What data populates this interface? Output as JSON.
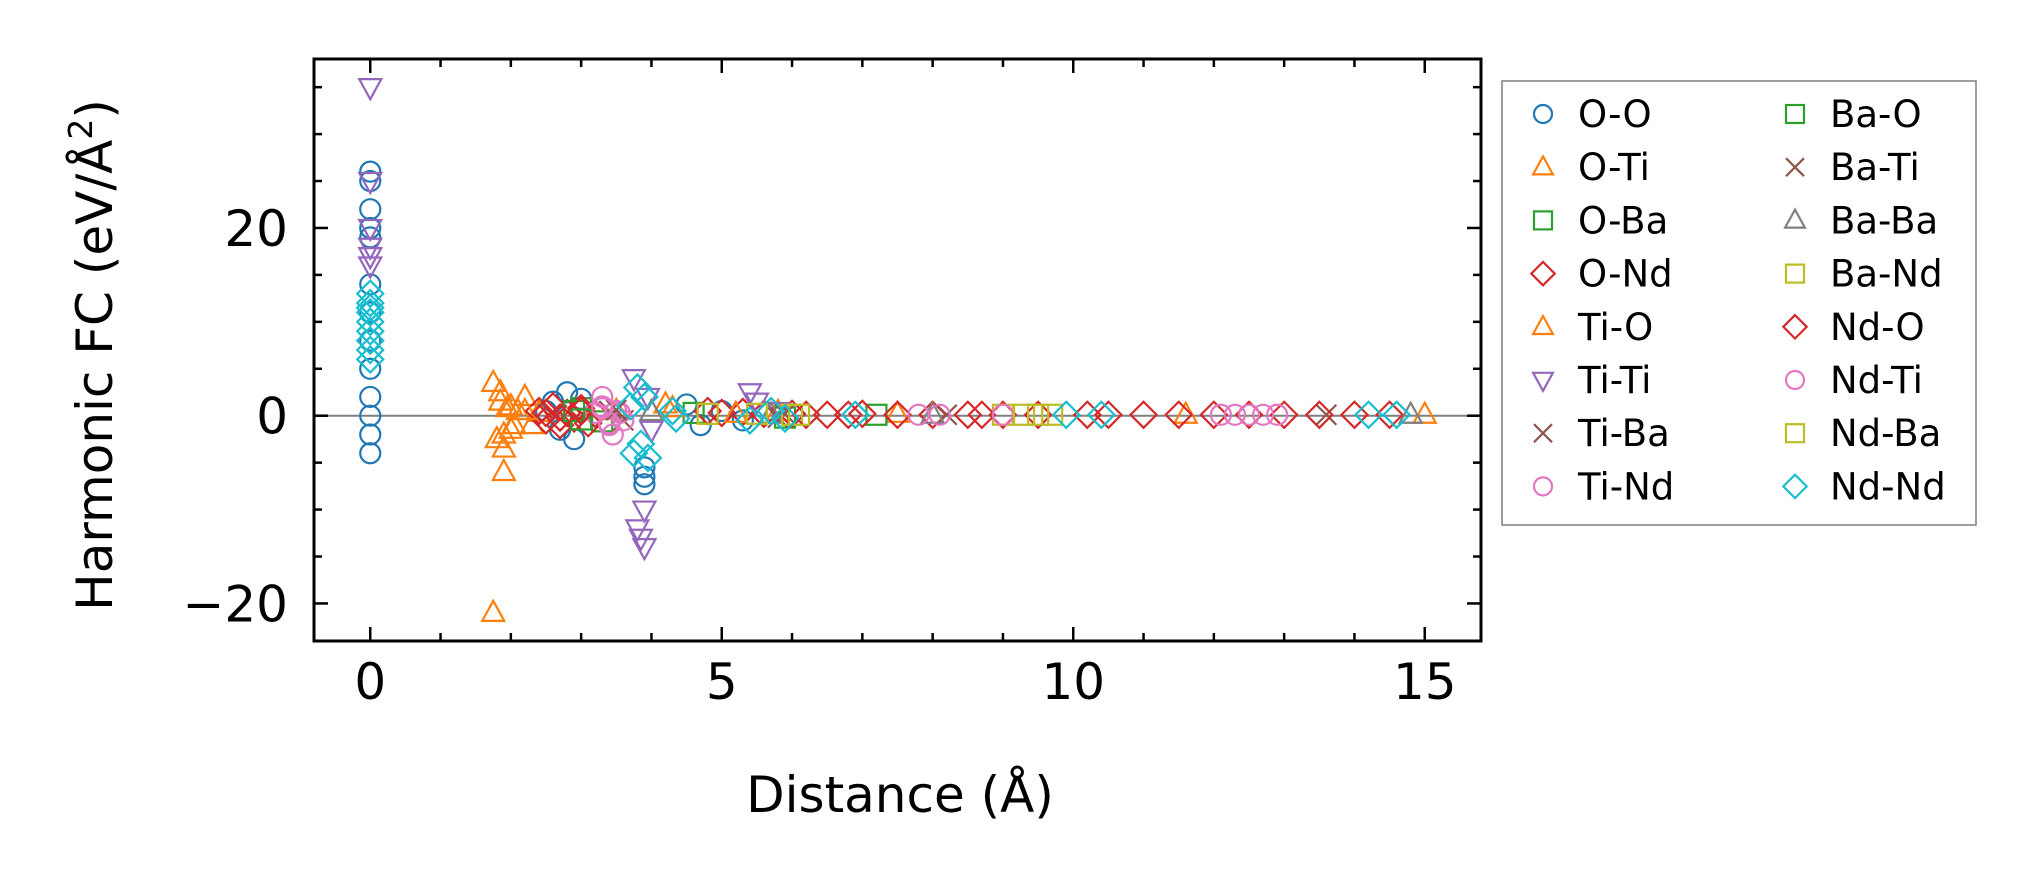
{
  "chart_data": {
    "type": "scatter",
    "xlabel": "Distance (Å)",
    "ylabel_main": "Harmonic FC (eV/Å",
    "ylabel_sup": "2",
    "ylabel_close": ")",
    "xlim": [
      -0.8,
      15.8
    ],
    "ylim": [
      -24,
      38
    ],
    "xticks": [
      0,
      5,
      10,
      15
    ],
    "xtick_labels": [
      "0",
      "5",
      "10",
      "15"
    ],
    "yticks": [
      -20,
      0,
      20
    ],
    "ytick_labels": [
      "−20",
      "0",
      "20"
    ],
    "x_minor_step": 1,
    "y_minor_step": 5,
    "zero_line": true,
    "grid": false,
    "legend_position": "outside-right",
    "legend_columns": 2,
    "series": [
      {
        "name": "O-O",
        "marker": "circle",
        "color": "#1f77b4",
        "points": [
          [
            0,
            26
          ],
          [
            0,
            25
          ],
          [
            0,
            22
          ],
          [
            0,
            20
          ],
          [
            0,
            19
          ],
          [
            0,
            14
          ],
          [
            0,
            11
          ],
          [
            0,
            8
          ],
          [
            0,
            5
          ],
          [
            0,
            2
          ],
          [
            0,
            0
          ],
          [
            0,
            -2
          ],
          [
            0,
            -4
          ],
          [
            2.6,
            1.5
          ],
          [
            2.7,
            -1.5
          ],
          [
            2.8,
            2.5
          ],
          [
            2.9,
            -2.5
          ],
          [
            3.0,
            1.8
          ],
          [
            2.5,
            0.5
          ],
          [
            3.9,
            -5.5
          ],
          [
            3.9,
            -6.5
          ],
          [
            3.9,
            -7.3
          ],
          [
            4.5,
            1.2
          ],
          [
            4.7,
            -1
          ],
          [
            5.0,
            0.5
          ],
          [
            5.3,
            -0.5
          ]
        ]
      },
      {
        "name": "O-Ti",
        "marker": "triangle-up",
        "color": "#ff7f0e",
        "points": [
          [
            1.75,
            3.5
          ],
          [
            1.8,
            -2.5
          ],
          [
            1.85,
            1.5
          ],
          [
            1.9,
            -3.5
          ],
          [
            1.95,
            0.8
          ],
          [
            2.0,
            -1.5
          ],
          [
            1.75,
            -21
          ],
          [
            1.9,
            -6
          ],
          [
            2.1,
            0.5
          ],
          [
            2.2,
            2
          ],
          [
            2.3,
            -1
          ],
          [
            2.4,
            0.3
          ],
          [
            3.5,
            0.5
          ],
          [
            4.2,
            1.2
          ],
          [
            5.8,
            0.4
          ],
          [
            7.5,
            0.2
          ],
          [
            11.6,
            0.1
          ],
          [
            15.0,
            0.1
          ]
        ]
      },
      {
        "name": "O-Ba",
        "marker": "square",
        "color": "#2ca02c",
        "points": [
          [
            3.0,
            0.8
          ],
          [
            3.3,
            -0.6
          ],
          [
            4.6,
            0.3
          ],
          [
            5.9,
            -0.2
          ],
          [
            7.2,
            0.1
          ]
        ]
      },
      {
        "name": "O-Nd",
        "marker": "diamond",
        "color": "#d62728",
        "points": [
          [
            2.4,
            0.5
          ],
          [
            2.5,
            -0.5
          ],
          [
            2.6,
            1
          ],
          [
            2.7,
            -1
          ],
          [
            2.8,
            0.3
          ],
          [
            2.9,
            -0.3
          ],
          [
            3.0,
            0.8
          ],
          [
            3.1,
            -0.8
          ],
          [
            3.2,
            0.2
          ],
          [
            4.8,
            0.5
          ],
          [
            5.0,
            0.3
          ],
          [
            5.3,
            0.4
          ],
          [
            5.6,
            0.2
          ],
          [
            6.0,
            0.2
          ],
          [
            6.5,
            0.1
          ],
          [
            7.0,
            0.2
          ],
          [
            7.5,
            0.1
          ],
          [
            8.0,
            0.1
          ],
          [
            8.5,
            0.1
          ],
          [
            9.0,
            0.1
          ],
          [
            9.5,
            0.1
          ],
          [
            10.5,
            0.1
          ],
          [
            11.0,
            0.1
          ],
          [
            11.5,
            0.1
          ],
          [
            12.5,
            0.1
          ],
          [
            13.0,
            0.1
          ],
          [
            14.0,
            0.1
          ],
          [
            14.5,
            0.1
          ]
        ]
      },
      {
        "name": "Ti-O",
        "marker": "triangle-up",
        "color": "#ff7f0e",
        "points": [
          [
            1.85,
            2.5
          ],
          [
            1.9,
            -2
          ],
          [
            2.0,
            1
          ],
          [
            2.05,
            -1
          ],
          [
            2.2,
            0.5
          ],
          [
            4.3,
            0.8
          ],
          [
            5.2,
            0.2
          ]
        ]
      },
      {
        "name": "Ti-Ti",
        "marker": "triangle-down",
        "color": "#9467bd",
        "points": [
          [
            0,
            35
          ],
          [
            0,
            25
          ],
          [
            0,
            20
          ],
          [
            0,
            18
          ],
          [
            0,
            17
          ],
          [
            0,
            16
          ],
          [
            3.8,
            -12
          ],
          [
            3.85,
            -13
          ],
          [
            3.9,
            -14
          ],
          [
            3.9,
            -10
          ],
          [
            3.75,
            4
          ],
          [
            3.95,
            2
          ],
          [
            4.0,
            -1.5
          ],
          [
            5.4,
            2.5
          ],
          [
            5.5,
            1.5
          ],
          [
            5.8,
            0.5
          ]
        ]
      },
      {
        "name": "Ti-Ba",
        "marker": "x",
        "color": "#8c564b",
        "points": [
          [
            3.4,
            0.5
          ],
          [
            3.6,
            -0.5
          ],
          [
            5.9,
            0.2
          ],
          [
            8.2,
            0.1
          ],
          [
            13.6,
            0.1
          ]
        ]
      },
      {
        "name": "Ti-Nd",
        "marker": "circle",
        "color": "#e377c2",
        "points": [
          [
            3.3,
            1
          ],
          [
            3.4,
            -1
          ],
          [
            3.5,
            0.5
          ],
          [
            3.6,
            -0.5
          ],
          [
            3.3,
            2
          ],
          [
            3.45,
            -2
          ],
          [
            3.55,
            0.3
          ],
          [
            3.2,
            0.3
          ]
        ]
      },
      {
        "name": "Ba-O",
        "marker": "square",
        "color": "#2ca02c",
        "points": [
          [
            2.9,
            0.5
          ],
          [
            3.0,
            -0.4
          ]
        ]
      },
      {
        "name": "Ba-Ti",
        "marker": "x",
        "color": "#8c564b",
        "points": [
          [
            3.5,
            0.6
          ],
          [
            5.8,
            -0.2
          ]
        ]
      },
      {
        "name": "Ba-Ba",
        "marker": "triangle-up",
        "color": "#7f7f7f",
        "points": [
          [
            4.0,
            0.4
          ],
          [
            5.7,
            0.1
          ],
          [
            8.0,
            0.1
          ],
          [
            14.8,
            0.1
          ]
        ]
      },
      {
        "name": "Ba-Nd",
        "marker": "square",
        "color": "#bcbd22",
        "points": [
          [
            4.8,
            0.2
          ],
          [
            6.0,
            0.1
          ],
          [
            9.0,
            0.1
          ],
          [
            9.5,
            0.1
          ]
        ]
      },
      {
        "name": "Nd-O",
        "marker": "diamond",
        "color": "#d62728",
        "points": [
          [
            2.5,
            0.3
          ],
          [
            2.7,
            -0.2
          ],
          [
            3.0,
            0.5
          ],
          [
            6.2,
            0.1
          ],
          [
            6.8,
            0.1
          ],
          [
            8.7,
            0.1
          ],
          [
            10.2,
            0.1
          ],
          [
            12.0,
            0.1
          ],
          [
            13.5,
            0.1
          ]
        ]
      },
      {
        "name": "Nd-Ti",
        "marker": "circle",
        "color": "#e377c2",
        "points": [
          [
            3.3,
            0.8
          ],
          [
            3.4,
            -0.8
          ],
          [
            7.8,
            0.1
          ],
          [
            8.1,
            0.1
          ],
          [
            9.0,
            0.1
          ],
          [
            12.1,
            0.1
          ],
          [
            12.3,
            0.1
          ],
          [
            12.5,
            0.1
          ],
          [
            12.7,
            0.1
          ],
          [
            12.9,
            0.1
          ]
        ]
      },
      {
        "name": "Nd-Ba",
        "marker": "square",
        "color": "#bcbd22",
        "points": [
          [
            5.5,
            0.2
          ],
          [
            6.1,
            0.1
          ],
          [
            9.3,
            0.1
          ],
          [
            9.7,
            0.1
          ]
        ]
      },
      {
        "name": "Nd-Nd",
        "marker": "diamond",
        "color": "#17becf",
        "points": [
          [
            0,
            13
          ],
          [
            0,
            12
          ],
          [
            0,
            11.5
          ],
          [
            0,
            11
          ],
          [
            0,
            10
          ],
          [
            0,
            9
          ],
          [
            0,
            8
          ],
          [
            0,
            7
          ],
          [
            0,
            6
          ],
          [
            3.8,
            3
          ],
          [
            3.9,
            2
          ],
          [
            3.85,
            -3
          ],
          [
            3.75,
            -4
          ],
          [
            3.95,
            -4.5
          ],
          [
            3.7,
            1
          ],
          [
            4.3,
            0.5
          ],
          [
            4.35,
            -0.3
          ],
          [
            5.4,
            -0.5
          ],
          [
            5.7,
            0.5
          ],
          [
            5.9,
            -0.3
          ],
          [
            6.9,
            0.1
          ],
          [
            9.9,
            0.1
          ],
          [
            10.4,
            0.1
          ],
          [
            14.2,
            0.1
          ],
          [
            14.6,
            0.1
          ]
        ]
      }
    ]
  }
}
